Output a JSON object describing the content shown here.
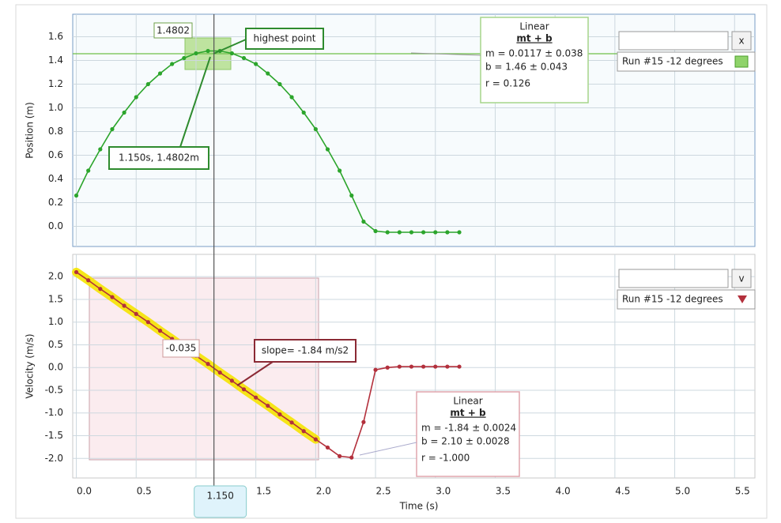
{
  "chart_data": [
    {
      "type": "line",
      "y_label": "Position (m)",
      "x": [
        0,
        0.1,
        0.2,
        0.3,
        0.4,
        0.5,
        0.6,
        0.7,
        0.8,
        0.9,
        1.0,
        1.1,
        1.2,
        1.3,
        1.4,
        1.5,
        1.6,
        1.7,
        1.8,
        1.9,
        2.0,
        2.1,
        2.2,
        2.3,
        2.4,
        2.5,
        2.6,
        2.7,
        2.8,
        2.9,
        3.0,
        3.1,
        3.2
      ],
      "series": [
        {
          "name": "Run #15 -12 degrees",
          "color": "#2ca52c",
          "values": [
            0.26,
            0.47,
            0.65,
            0.82,
            0.96,
            1.09,
            1.2,
            1.29,
            1.37,
            1.42,
            1.46,
            1.48,
            1.48,
            1.46,
            1.42,
            1.37,
            1.29,
            1.2,
            1.09,
            0.96,
            0.82,
            0.65,
            0.47,
            0.26,
            0.04,
            -0.04,
            -0.05,
            -0.05,
            -0.05,
            -0.05,
            -0.05,
            -0.05,
            -0.05
          ]
        }
      ],
      "xlim": [
        -0.03,
        5.67
      ],
      "ylim": [
        -0.17,
        1.79
      ],
      "xticks": [
        0,
        0.5,
        1,
        1.5,
        2,
        2.5,
        3,
        3.5,
        4,
        4.5,
        5,
        5.5
      ],
      "yticks": [
        {
          "value": 0,
          "label": "0.0"
        },
        0.2,
        0.4,
        0.6,
        0.8,
        {
          "value": 1,
          "label": "1.0"
        },
        1.2,
        1.4,
        1.6
      ],
      "grid": true,
      "legend_button": "x",
      "fit": {
        "title": "Linear",
        "formula": "mt + b",
        "m": "m = 0.0117 ± 0.038",
        "b": "b = 1.46    ± 0.043",
        "r": "r = 0.126"
      },
      "annotations": [
        1.4802,
        "highest point",
        "1.150s, 1.4802m"
      ]
    },
    {
      "type": "line",
      "y_label": "Velocity (m/s)",
      "x_label": "Time (s)",
      "x": [
        0,
        0.1,
        0.2,
        0.3,
        0.4,
        0.5,
        0.6,
        0.7,
        0.8,
        0.9,
        1.0,
        1.1,
        1.2,
        1.3,
        1.4,
        1.5,
        1.6,
        1.7,
        1.8,
        1.9,
        2.0,
        2.1,
        2.2,
        2.3,
        2.4,
        2.5,
        2.6,
        2.7,
        2.8,
        2.9,
        3.0,
        3.1,
        3.2
      ],
      "series": [
        {
          "name": "Run #15 -12 degrees",
          "color": "#b3303c",
          "values": [
            2.1,
            1.92,
            1.73,
            1.55,
            1.36,
            1.18,
            1.0,
            0.81,
            0.63,
            0.44,
            0.26,
            0.08,
            -0.11,
            -0.29,
            -0.48,
            -0.66,
            -0.84,
            -1.03,
            -1.21,
            -1.4,
            -1.58,
            -1.76,
            -1.95,
            -1.98,
            -1.2,
            -0.05,
            0.0,
            0.02,
            0.02,
            0.02,
            0.02,
            0.02,
            0.02
          ]
        }
      ],
      "xlim": [
        -0.03,
        5.67
      ],
      "ylim": [
        -2.43,
        2.49
      ],
      "xticks": [
        {
          "value": 0,
          "label": "0.0"
        },
        0.5,
        {
          "value": 1,
          "label": "1.0"
        },
        1.5,
        {
          "value": 2,
          "label": "2.0"
        },
        2.5,
        {
          "value": 3,
          "label": "3.0"
        },
        3.5,
        {
          "value": 4,
          "label": "4.0"
        },
        4.5,
        {
          "value": 5,
          "label": "5.0"
        },
        5.5
      ],
      "yticks": [
        {
          "value": 2,
          "label": "2.0"
        },
        1.5,
        {
          "value": 1,
          "label": "1.0"
        },
        0.5,
        {
          "value": 0,
          "label": "0.0"
        },
        -0.5,
        {
          "value": -1,
          "label": "-1.0"
        },
        -1.5,
        {
          "value": -2,
          "label": "-2.0"
        }
      ],
      "grid": true,
      "legend_button": "v",
      "fit": {
        "title": "Linear",
        "formula": "mt + b",
        "m": "m = -1.84 ± 0.0024",
        "b": "b = 2.10   ± 0.0028",
        "r": "r = -1.000"
      },
      "annotations": [
        -0.035,
        "slope= -1.84 m/s2"
      ],
      "cursor": {
        "value": 1.15,
        "label": "1.150"
      }
    }
  ]
}
